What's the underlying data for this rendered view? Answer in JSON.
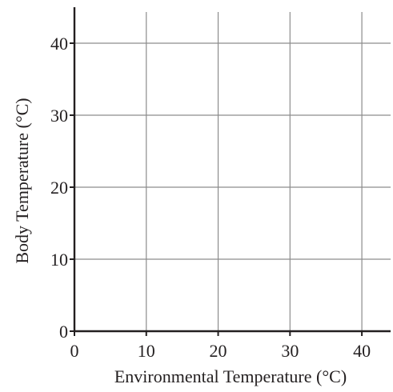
{
  "chart_data": {
    "type": "line",
    "title": "",
    "xlabel": "Environmental Temperature  (°C)",
    "ylabel": "Body Temperature (°C)",
    "xlim": [
      0,
      44
    ],
    "ylim": [
      0,
      45
    ],
    "x_ticks": [
      0,
      10,
      20,
      30,
      40
    ],
    "y_ticks": [
      0,
      10,
      20,
      30,
      40
    ],
    "x_tick_labels": [
      "0",
      "10",
      "20",
      "30",
      "40"
    ],
    "y_tick_labels": [
      "0",
      "10",
      "20",
      "30",
      "40"
    ],
    "grid": true,
    "series": [],
    "colors": {
      "axis": "#231f20",
      "grid": "#8c8c8c",
      "background": "#ffffff"
    }
  }
}
